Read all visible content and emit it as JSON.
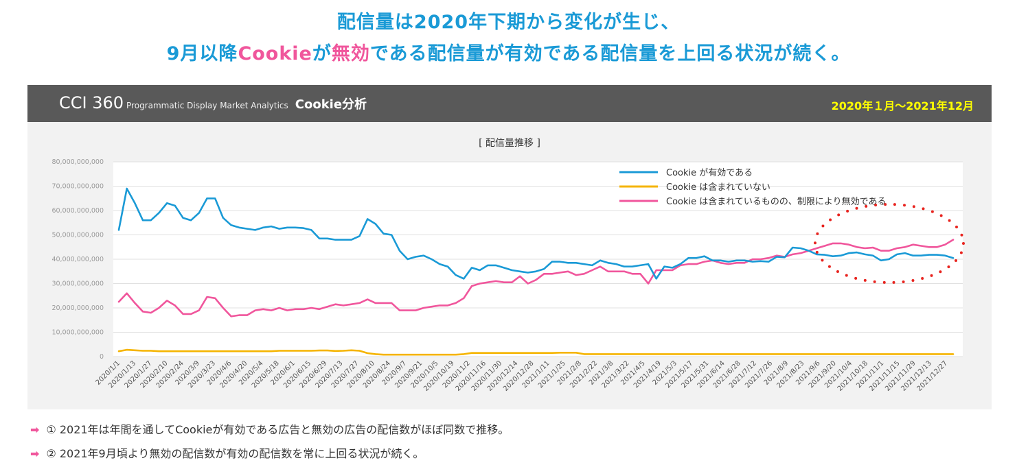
{
  "headline": {
    "line1": "配信量は2020年下期から変化が生じ、",
    "line2_pre": "9月以降",
    "line2_cookie": "Cookie",
    "line2_ga": "が",
    "line2_invalid": "無効",
    "line2_post": "である配信量が有効である配信量を上回る状況が続く。"
  },
  "panel": {
    "brand_main": "CCI 360",
    "brand_sub": "Programmatic Display Market Analytics",
    "brand_name": "Cookie分析",
    "period": "2020年１月～2021年12月"
  },
  "notes": [
    {
      "arrow": "➡",
      "text": "①  2021年は年間を通してCookieが有効である広告と無効の広告の配信数がほぼ同数で推移。"
    },
    {
      "arrow": "➡",
      "text": "②  2021年9月頃より無効の配信数が有効の配信数を常に上回る状況が続く。"
    }
  ],
  "colors": {
    "valid": "#1a9ad6",
    "none": "#f5b400",
    "invalid": "#f0569c",
    "highlight": "#e8241f"
  },
  "chart_data": {
    "type": "line",
    "title": "[ 配信量推移 ]",
    "ylim": [
      0,
      80000000000
    ],
    "yticks": [
      0,
      10000000000,
      20000000000,
      30000000000,
      40000000000,
      50000000000,
      60000000000,
      70000000000,
      80000000000
    ],
    "ytick_labels": [
      "0",
      "10,000,000,000",
      "20,000,000,000",
      "30,000,000,000",
      "40,000,000,000",
      "50,000,000,000",
      "60,000,000,000",
      "70,000,000,000",
      "80,000,000,000"
    ],
    "xtick_labels": [
      "2020/1/1",
      "2020/1/13",
      "2020/1/27",
      "2020/2/10",
      "2020/2/24",
      "2020/3/9",
      "2020/3/23",
      "2020/4/6",
      "2020/4/20",
      "2020/5/4",
      "2020/5/18",
      "2020/6/1",
      "2020/6/15",
      "2020/6/29",
      "2020/7/13",
      "2020/7/27",
      "2020/8/10",
      "2020/8/24",
      "2020/9/7",
      "2020/9/21",
      "2020/10/5",
      "2020/10/19",
      "2020/11/2",
      "2020/11/16",
      "2020/11/30",
      "2020/12/14",
      "2020/12/28",
      "2021/1/11",
      "2021/1/25",
      "2021/2/8",
      "2021/2/22",
      "2021/3/8",
      "2021/3/22",
      "2021/4/5",
      "2021/4/19",
      "2021/5/3",
      "2021/5/17",
      "2021/5/31",
      "2021/6/14",
      "2021/6/28",
      "2021/7/12",
      "2021/7/26",
      "2021/8/9",
      "2021/8/23",
      "2021/9/6",
      "2021/9/20",
      "2021/10/4",
      "2021/10/18",
      "2021/11/1",
      "2021/11/15",
      "2021/11/29",
      "2021/12/13",
      "2021/12/27"
    ],
    "legend_position": "top-right",
    "grid": true,
    "series": [
      {
        "name": "Cookie が有効である",
        "color": "#1a9ad6",
        "values": [
          52,
          69,
          63,
          56,
          56,
          59,
          63,
          62,
          57,
          56,
          59,
          65,
          65,
          57,
          54,
          53,
          52.5,
          52,
          53,
          53.5,
          52.5,
          53,
          53,
          52.8,
          52,
          48.5,
          48.5,
          48,
          48,
          48,
          49.5,
          56.5,
          54.5,
          50.5,
          50,
          43.5,
          40,
          41,
          41.5,
          40,
          38,
          37,
          33.5,
          32,
          36.5,
          35.5,
          37.5,
          37.5,
          36.5,
          35.5,
          35,
          34.5,
          35,
          36,
          39,
          39,
          38.5,
          38.5,
          38,
          37.5,
          39.5,
          38.5,
          38,
          37,
          37,
          37.5,
          38,
          32,
          37,
          36.5,
          38,
          40.5,
          40.5,
          41.2,
          39.5,
          39.5,
          39,
          39.5,
          39.5,
          39,
          39.2,
          39,
          41,
          40.8,
          44.8,
          44.5,
          43.5,
          42,
          41.8,
          41.2,
          41.5,
          42.5,
          42.8,
          42,
          41.5,
          39.5,
          40,
          42,
          42.5,
          41.5,
          41.5,
          41.8,
          41.8,
          41.5,
          40.5
        ]
      },
      {
        "name": "Cookie は含まれていない",
        "color": "#f5b400",
        "values": [
          2.2,
          2.8,
          2.6,
          2.4,
          2.4,
          2.2,
          2.2,
          2.2,
          2.2,
          2.2,
          2.2,
          2.2,
          2.2,
          2.2,
          2.2,
          2.2,
          2.2,
          2.2,
          2.2,
          2.2,
          2.4,
          2.4,
          2.4,
          2.4,
          2.4,
          2.5,
          2.5,
          2.3,
          2.4,
          2.6,
          2.4,
          1.4,
          1.0,
          0.8,
          0.8,
          0.8,
          0.8,
          0.8,
          0.8,
          0.8,
          0.8,
          0.8,
          0.8,
          1.0,
          1.5,
          1.5,
          1.5,
          1.5,
          1.5,
          1.5,
          1.5,
          1.5,
          1.5,
          1.5,
          1.5,
          1.6,
          1.6,
          1.6,
          1.0,
          1.0,
          1.0,
          1.0,
          1.0,
          1.0,
          1.0,
          1.0,
          1.0,
          1.0,
          1.0,
          1.0,
          1.0,
          1.0,
          1.0,
          1.0,
          1.0,
          1.0,
          1.0,
          1.0,
          1.0,
          1.0,
          1.0,
          1.0,
          1.0,
          1.0,
          1.0,
          1.0,
          1.0,
          1.0,
          1.0,
          1.0,
          1.0,
          1.0,
          1.0,
          1.0,
          1.0,
          1.0,
          1.0,
          1.0,
          1.0,
          1.0,
          1.0,
          1.0,
          1.0,
          1.0,
          1.0
        ]
      },
      {
        "name": "Cookie は含まれているものの、制限により無効である",
        "color": "#f0569c",
        "values": [
          22.5,
          26,
          22,
          18.5,
          18,
          20,
          23,
          21,
          17.5,
          17.5,
          19,
          24.5,
          24,
          20,
          16.5,
          17,
          17,
          19,
          19.5,
          19,
          20,
          19,
          19.5,
          19.5,
          20,
          19.5,
          20.5,
          21.5,
          21,
          21.5,
          22,
          23.5,
          22,
          22,
          22,
          19,
          19,
          19,
          20,
          20.5,
          21,
          21,
          22,
          24,
          29,
          30,
          30.5,
          31,
          30.5,
          30.5,
          33,
          30,
          31.5,
          34,
          34,
          34.5,
          35,
          33.5,
          34,
          35.5,
          37,
          35,
          35,
          35,
          34,
          34,
          30,
          35.5,
          35.5,
          35.5,
          37.5,
          38,
          38,
          39,
          39.5,
          38.5,
          38,
          38.5,
          38.5,
          40,
          40,
          40.5,
          41.5,
          41,
          42,
          42.5,
          43.5,
          44.5,
          45.5,
          46.5,
          46.5,
          46,
          45,
          44.5,
          44.8,
          43.5,
          43.5,
          44.5,
          45,
          46,
          45.5,
          45,
          45,
          46,
          48
        ]
      }
    ]
  }
}
